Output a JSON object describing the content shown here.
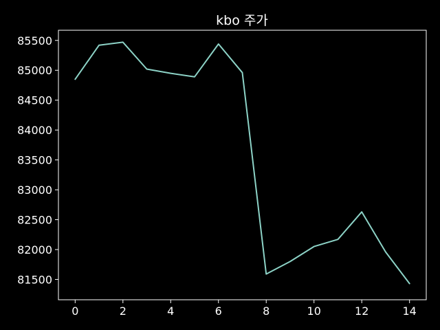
{
  "chart_data": {
    "type": "line",
    "title": "kbo 주가",
    "xlabel": "",
    "ylabel": "",
    "x": [
      0,
      1,
      2,
      3,
      4,
      5,
      6,
      7,
      8,
      9,
      10,
      11,
      12,
      13,
      14
    ],
    "series": [
      {
        "values": [
          84850,
          85420,
          85470,
          85020,
          84950,
          84890,
          85440,
          84960,
          81590,
          81800,
          82050,
          82170,
          82630,
          81960,
          81430
        ]
      }
    ],
    "xlim": [
      -0.7,
      14.7
    ],
    "ylim": [
      81160,
      85670
    ],
    "xticks": [
      0,
      2,
      4,
      6,
      8,
      10,
      12,
      14
    ],
    "yticks": [
      81500,
      82000,
      82500,
      83000,
      83500,
      84000,
      84500,
      85000,
      85500
    ],
    "grid": false,
    "legend": "none",
    "colors": {
      "background": "#000000",
      "line": "#8dd3c7",
      "axes": "#ffffff",
      "text": "#ffffff"
    }
  }
}
